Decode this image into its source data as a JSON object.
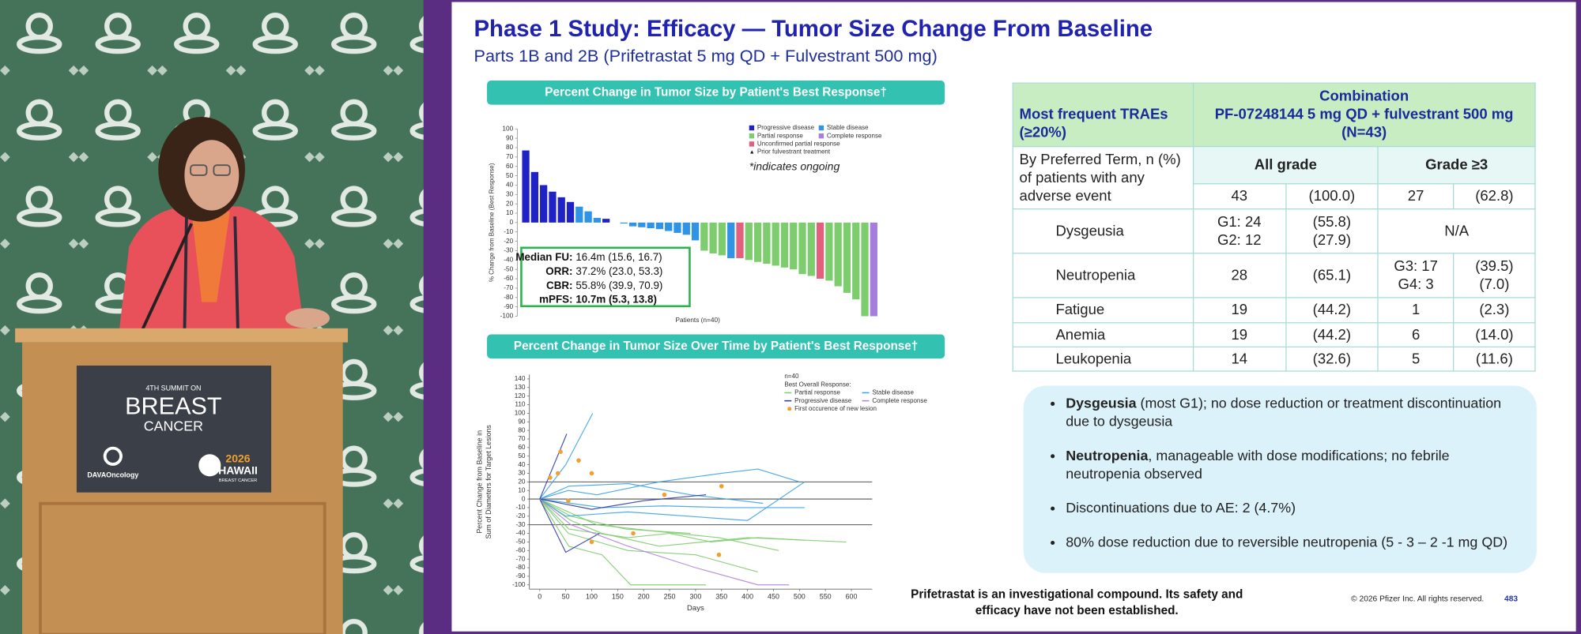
{
  "video": {
    "sign": {
      "summit": "4TH SUMMIT ON",
      "title1": "BREAST",
      "title2": "CANCER",
      "org": "DAVAOncology",
      "year": "2026",
      "place": "HAWAII",
      "event": "BREAST CANCER"
    }
  },
  "slide": {
    "title": "Phase 1 Study: Efficacy — Tumor Size Change From Baseline",
    "subtitle": "Parts 1B and 2B (Prifetrastat 5 mg QD + Fulvestrant 500 mg)",
    "waterfall": {
      "type": "bar",
      "title": "Percent Change in Tumor Size by Patient's Best Response†",
      "y_label": "% Change from Baseline (Best Response)",
      "x_label": "Patients (n=40)",
      "ylim": [
        -100,
        100
      ],
      "yticks": [
        100,
        90,
        80,
        70,
        60,
        50,
        40,
        30,
        20,
        10,
        0,
        -10,
        -20,
        -30,
        -40,
        -50,
        -60,
        -70,
        -80,
        -90,
        -100
      ],
      "categories": [
        null,
        null,
        null,
        null,
        null,
        null,
        null,
        null,
        null,
        null,
        null,
        null,
        null,
        null,
        null,
        null,
        null,
        null,
        null,
        null,
        null,
        null,
        null,
        null,
        null,
        null,
        null,
        null,
        null,
        null,
        null,
        null,
        null,
        null,
        null,
        null,
        null,
        null,
        null,
        null
      ],
      "series": [
        {
          "name": "Progressive disease",
          "color": "#1f22c4",
          "values": [
            77,
            54,
            40,
            33,
            27,
            22,
            null,
            null,
            null,
            4,
            null,
            null,
            null,
            null,
            null,
            null,
            null,
            null,
            null,
            null,
            null,
            null,
            null,
            null,
            null,
            null,
            null,
            null,
            null,
            null,
            null,
            null,
            null,
            null,
            null,
            null,
            null,
            null,
            null,
            null
          ]
        },
        {
          "name": "Stable disease",
          "color": "#2f93e6",
          "values": [
            null,
            null,
            null,
            null,
            null,
            null,
            17,
            12,
            5,
            null,
            0,
            -1,
            -4,
            -5,
            -6,
            -7,
            -9,
            -11,
            -13,
            -19,
            null,
            null,
            null,
            -38,
            null,
            null,
            null,
            null,
            null,
            null,
            null,
            null,
            null,
            null,
            null,
            null,
            null,
            null,
            null,
            null
          ]
        },
        {
          "name": "Partial response",
          "color": "#7dcc6e",
          "values": [
            null,
            null,
            null,
            null,
            null,
            null,
            null,
            null,
            null,
            null,
            null,
            null,
            null,
            null,
            null,
            null,
            null,
            null,
            null,
            null,
            -30,
            -33,
            -35,
            null,
            null,
            -40,
            -42,
            -44,
            -46,
            -48,
            -50,
            -55,
            -57,
            null,
            -62,
            -68,
            -75,
            -82,
            -100,
            null
          ]
        },
        {
          "name": "Complete response",
          "color": "#a77ee0",
          "values": [
            null,
            null,
            null,
            null,
            null,
            null,
            null,
            null,
            null,
            null,
            null,
            null,
            null,
            null,
            null,
            null,
            null,
            null,
            null,
            null,
            null,
            null,
            null,
            null,
            null,
            null,
            null,
            null,
            null,
            null,
            null,
            null,
            null,
            null,
            null,
            null,
            null,
            null,
            null,
            -100
          ]
        },
        {
          "name": "Unconfirmed partial response",
          "color": "#e0607e",
          "values": [
            null,
            null,
            null,
            null,
            null,
            null,
            null,
            null,
            null,
            null,
            null,
            null,
            null,
            null,
            null,
            null,
            null,
            null,
            null,
            null,
            null,
            null,
            null,
            null,
            -38,
            null,
            null,
            null,
            null,
            null,
            null,
            null,
            null,
            -60,
            null,
            null,
            null,
            null,
            null,
            null
          ]
        }
      ],
      "legend_extra": [
        {
          "symbol": "▲",
          "name": "Prior fulvestrant treatment"
        }
      ],
      "note": "*indicates ongoing",
      "stats": [
        {
          "label": "Median FU:",
          "value": "16.4m (15.6, 16.7)"
        },
        {
          "label": "ORR:",
          "value": "37.2% (23.0, 53.3)"
        },
        {
          "label": "CBR:",
          "value": "55.8% (39.9, 70.9)"
        },
        {
          "label": "mPFS:",
          "value": "10.7m (5.3, 13.8)"
        }
      ]
    },
    "spider": {
      "type": "line",
      "title": "Percent Change in Tumor Size Over Time by Patient's Best Response†",
      "n_label": "n=40",
      "legend_title": "Best Overall Response:",
      "y_label": [
        "Percent Change from Baseline in",
        "Sum of Diameters for Target Lesions"
      ],
      "x_label": "Days",
      "xlim": [
        -20,
        640
      ],
      "ylim": [
        -105,
        145
      ],
      "xticks": [
        0,
        50,
        100,
        150,
        200,
        250,
        300,
        350,
        400,
        450,
        500,
        550,
        600
      ],
      "yticks": [
        140,
        130,
        120,
        110,
        100,
        90,
        80,
        70,
        60,
        50,
        40,
        30,
        20,
        10,
        0,
        -10,
        -20,
        -30,
        -40,
        -50,
        -60,
        -70,
        -80,
        -90,
        -100
      ],
      "reference_lines": [
        20,
        0,
        -30
      ],
      "series": [
        {
          "name": "Partial response",
          "color": "#7dcc6e",
          "lines": [
            {
              "x": [
                0,
                56,
                170,
                250,
                330,
                420,
                510
              ],
              "values": [
                0,
                -35,
                -45,
                -40,
                -50,
                -45,
                -48
              ]
            },
            {
              "x": [
                0,
                60,
                120,
                230,
                400,
                590
              ],
              "values": [
                0,
                -25,
                -40,
                -55,
                -45,
                -50
              ]
            },
            {
              "x": [
                0,
                55,
                170,
                300,
                420
              ],
              "values": [
                0,
                -40,
                -60,
                -65,
                -85
              ]
            },
            {
              "x": [
                0,
                56,
                120,
                175,
                320
              ],
              "values": [
                0,
                -55,
                -65,
                -100,
                -100
              ]
            },
            {
              "x": [
                0,
                110,
                230,
                345,
                460
              ],
              "values": [
                0,
                -30,
                -38,
                -45,
                -60
              ]
            },
            {
              "x": [
                0,
                60,
                165,
                290
              ],
              "values": [
                0,
                -20,
                -35,
                -40
              ]
            }
          ]
        },
        {
          "name": "Stable disease",
          "color": "#3aa2e6",
          "lines": [
            {
              "x": [
                0,
                55,
                110,
                230,
                350,
                420,
                500
              ],
              "values": [
                0,
                10,
                5,
                20,
                30,
                35,
                20
              ]
            },
            {
              "x": [
                0,
                60,
                120,
                240,
                360,
                510
              ],
              "values": [
                0,
                -5,
                -10,
                -8,
                -10,
                -10
              ]
            },
            {
              "x": [
                0,
                56,
                170,
                290,
                430
              ],
              "values": [
                0,
                15,
                18,
                5,
                -5
              ]
            },
            {
              "x": [
                0,
                50,
                170,
                400,
                510
              ],
              "values": [
                0,
                -20,
                -15,
                -25,
                20
              ]
            },
            {
              "x": [
                0,
                50,
                102
              ],
              "values": [
                0,
                40,
                100
              ]
            }
          ]
        },
        {
          "name": "Progressive disease",
          "color": "#2b3aa8",
          "lines": [
            {
              "x": [
                0,
                52
              ],
              "values": [
                0,
                76
              ]
            },
            {
              "x": [
                0,
                50,
                115
              ],
              "values": [
                0,
                -62,
                -40
              ]
            },
            {
              "x": [
                0,
                100,
                200,
                320
              ],
              "values": [
                0,
                -12,
                -2,
                5
              ]
            }
          ]
        },
        {
          "name": "Complete response",
          "color": "#b084dc",
          "lines": [
            {
              "x": [
                0,
                60,
                170,
                300,
                420,
                480
              ],
              "values": [
                0,
                -30,
                -55,
                -80,
                -100,
                -100
              ]
            }
          ]
        }
      ],
      "new_lesion": {
        "name": "First occurence of new lesion",
        "color": "#f0a030",
        "x": [
          20,
          35,
          40,
          75,
          100,
          240,
          350,
          100,
          180,
          345,
          55
        ],
        "values": [
          25,
          30,
          55,
          45,
          30,
          5,
          15,
          -50,
          -40,
          -65,
          -2
        ]
      }
    },
    "table": {
      "header_left": "Most frequent TRAEs (≥20%)",
      "header_right": [
        "Combination",
        "PF-07248144 5 mg QD + fulvestrant 500 mg",
        "(N=43)"
      ],
      "subheader_left": "By Preferred Term, n (%) of patients with any adverse event",
      "col_all": "All grade",
      "col_g3": "Grade ≥3",
      "any_row": [
        "43",
        "(100.0)",
        "27",
        "(62.8)"
      ],
      "rows": [
        {
          "term": "Dysgeusia",
          "cells": [
            [
              "G1: 24",
              "G2: 12"
            ],
            [
              "(55.8)",
              "(27.9)"
            ]
          ],
          "g3_span": "N/A"
        },
        {
          "term": "Neutropenia",
          "cells": [
            [
              "28"
            ],
            [
              "(65.1)"
            ],
            [
              "G3: 17",
              "G4: 3"
            ],
            [
              "(39.5)",
              "(7.0)"
            ]
          ]
        },
        {
          "term": "Fatigue",
          "cells": [
            [
              "19"
            ],
            [
              "(44.2)"
            ],
            [
              "1"
            ],
            [
              "(2.3)"
            ]
          ]
        },
        {
          "term": "Anemia",
          "cells": [
            [
              "19"
            ],
            [
              "(44.2)"
            ],
            [
              "6"
            ],
            [
              "(14.0)"
            ]
          ]
        },
        {
          "term": "Leukopenia",
          "cells": [
            [
              "14"
            ],
            [
              "(32.6)"
            ],
            [
              "5"
            ],
            [
              "(11.6)"
            ]
          ]
        }
      ]
    },
    "bullets": [
      {
        "bold": "Dysgeusia",
        "text": " (most G1); no dose reduction or treatment discontinuation due to dysgeusia"
      },
      {
        "bold": "Neutropenia",
        "text": ", manageable with dose modifications; no febrile neutropenia observed"
      },
      {
        "text": "Discontinuations due to AE: 2 (4.7%)"
      },
      {
        "text": "80% dose reduction due to reversible neutropenia (5 - 3 – 2 -1 mg QD)"
      }
    ],
    "disclaimer": [
      "Prifetrastat is an investigational compound. Its safety and",
      "efficacy have not been established."
    ],
    "copyright": "© 2026 Pfizer Inc. All rights reserved.",
    "page": "483"
  }
}
